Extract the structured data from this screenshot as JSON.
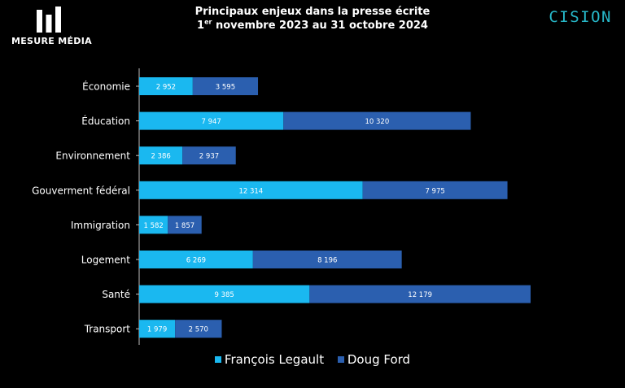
{
  "brand": {
    "left_logo_text": "MESURE MÉDIA",
    "right_logo_text": "CISION",
    "right_logo_color": "#27b8c9"
  },
  "colors": {
    "series1": "#1ab8f0",
    "series2": "#2b5faf",
    "axis": "#bfbfbf"
  },
  "chart_data": {
    "type": "bar",
    "orientation": "horizontal",
    "stacked": true,
    "title_line1": "Principaux enjeux dans la presse écrite",
    "title_line2_prefix": "1",
    "title_line2_sup": "er",
    "title_line2_rest": " novembre 2023 au 31 octobre 2024",
    "categories": [
      "Économie",
      "Éducation",
      "Environnement",
      "Gouverment fédéral",
      "Immigration",
      "Logement",
      "Santé",
      "Transport"
    ],
    "series": [
      {
        "name": "François Legault",
        "values": [
          2952,
          7947,
          2386,
          12314,
          1582,
          6269,
          9385,
          1979
        ],
        "labels": [
          "2 952",
          "7 947",
          "2 386",
          "12 314",
          "1 582",
          "6 269",
          "9 385",
          "1 979"
        ]
      },
      {
        "name": "Doug Ford",
        "values": [
          3595,
          10320,
          2937,
          7975,
          1857,
          8196,
          12179,
          2570
        ],
        "labels": [
          "3 595",
          "10 320",
          "2 937",
          "7 975",
          "1 857",
          "8 196",
          "12 179",
          "2 570"
        ]
      }
    ],
    "legend_position": "bottom",
    "grid": false
  }
}
